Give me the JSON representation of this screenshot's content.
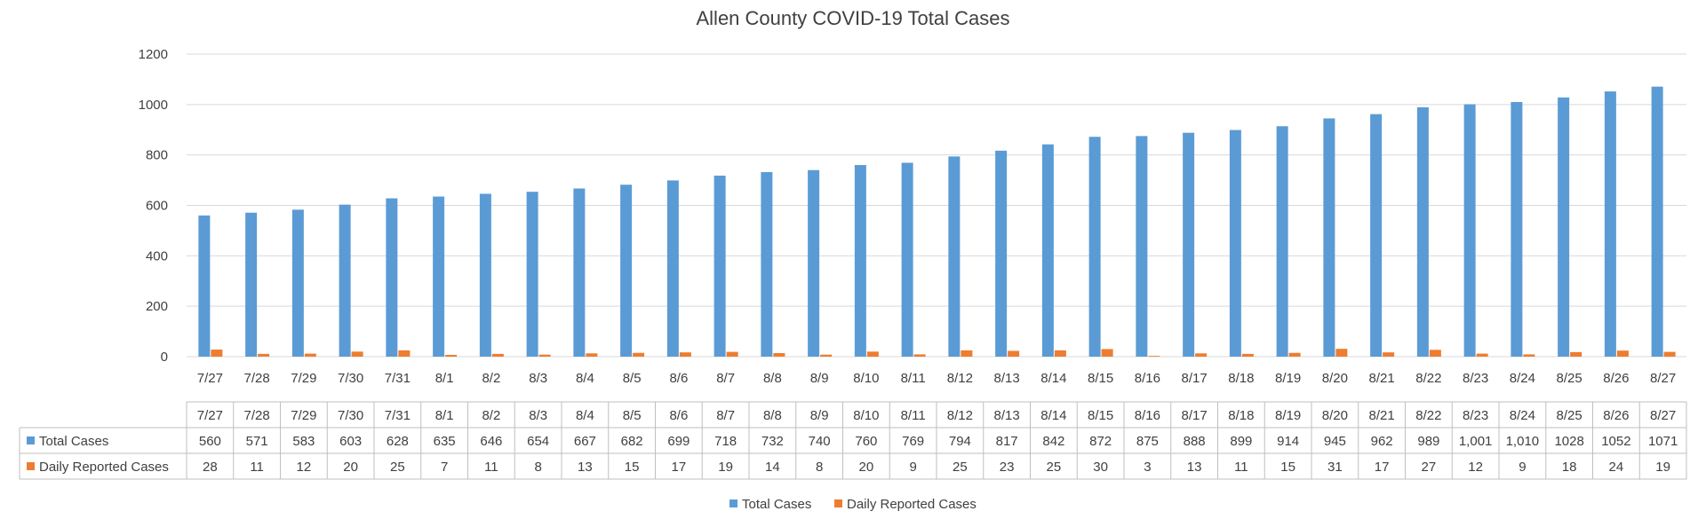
{
  "chart_data": {
    "type": "bar",
    "title": "Allen County COVID-19 Total Cases",
    "xlabel": "",
    "ylabel": "",
    "ylim": [
      0,
      1200
    ],
    "yticks": [
      0,
      200,
      400,
      600,
      800,
      1000,
      1200
    ],
    "grid": true,
    "legend_position": "bottom",
    "categories": [
      "7/27",
      "7/28",
      "7/29",
      "7/30",
      "7/31",
      "8/1",
      "8/2",
      "8/3",
      "8/4",
      "8/5",
      "8/6",
      "8/7",
      "8/8",
      "8/9",
      "8/10",
      "8/11",
      "8/12",
      "8/13",
      "8/14",
      "8/15",
      "8/16",
      "8/17",
      "8/18",
      "8/19",
      "8/20",
      "8/21",
      "8/22",
      "8/23",
      "8/24",
      "8/25",
      "8/26",
      "8/27"
    ],
    "series": [
      {
        "name": "Total Cases",
        "color": "#5b9bd5",
        "values": [
          560,
          571,
          583,
          603,
          628,
          635,
          646,
          654,
          667,
          682,
          699,
          718,
          732,
          740,
          760,
          769,
          794,
          817,
          842,
          872,
          875,
          888,
          899,
          914,
          945,
          962,
          989,
          1001,
          1010,
          1028,
          1052,
          1071
        ],
        "table_labels": [
          "560",
          "571",
          "583",
          "603",
          "628",
          "635",
          "646",
          "654",
          "667",
          "682",
          "699",
          "718",
          "732",
          "740",
          "760",
          "769",
          "794",
          "817",
          "842",
          "872",
          "875",
          "888",
          "899",
          "914",
          "945",
          "962",
          "989",
          "1,001",
          "1,010",
          "1028",
          "1052",
          "1071"
        ]
      },
      {
        "name": "Daily Reported Cases",
        "color": "#ed7d31",
        "values": [
          28,
          11,
          12,
          20,
          25,
          7,
          11,
          8,
          13,
          15,
          17,
          19,
          14,
          8,
          20,
          9,
          25,
          23,
          25,
          30,
          3,
          13,
          11,
          15,
          31,
          17,
          27,
          12,
          9,
          18,
          24,
          19
        ],
        "table_labels": [
          "28",
          "11",
          "12",
          "20",
          "25",
          "7",
          "11",
          "8",
          "13",
          "15",
          "17",
          "19",
          "14",
          "8",
          "20",
          "9",
          "25",
          "23",
          "25",
          "30",
          "3",
          "13",
          "11",
          "15",
          "31",
          "17",
          "27",
          "12",
          "9",
          "18",
          "24",
          "19"
        ]
      }
    ]
  }
}
